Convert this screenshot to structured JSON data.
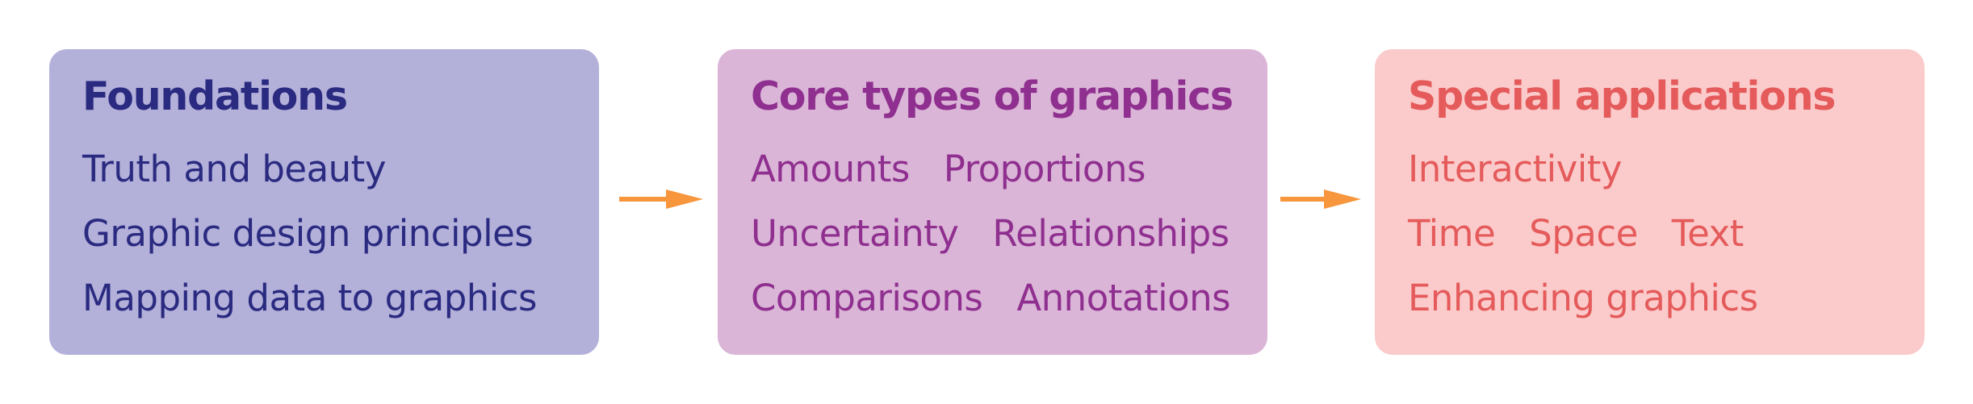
{
  "colors": {
    "foundations_fill": "#b3b0da",
    "foundations_text": "#2a2a80",
    "core_fill": "#dab5d7",
    "core_text": "#8f2f8f",
    "special_fill": "#fbcbcb",
    "special_text": "#e55b5b",
    "arrow": "#f7963c"
  },
  "panels": [
    {
      "title": "Foundations",
      "lines": [
        [
          "Truth and beauty"
        ],
        [
          "Graphic design principles"
        ],
        [
          "Mapping data to graphics"
        ]
      ]
    },
    {
      "title": "Core types of graphics",
      "lines": [
        [
          "Amounts",
          "Proportions"
        ],
        [
          "Uncertainty",
          "Relationships"
        ],
        [
          "Comparisons",
          "Annotations"
        ]
      ]
    },
    {
      "title": "Special applications",
      "lines": [
        [
          "Interactivity"
        ],
        [
          "Time",
          "Space",
          "Text"
        ],
        [
          "Enhancing graphics"
        ]
      ]
    }
  ],
  "arrows": [
    {
      "from": "Foundations",
      "to": "Core types of graphics"
    },
    {
      "from": "Core types of graphics",
      "to": "Special applications"
    }
  ]
}
